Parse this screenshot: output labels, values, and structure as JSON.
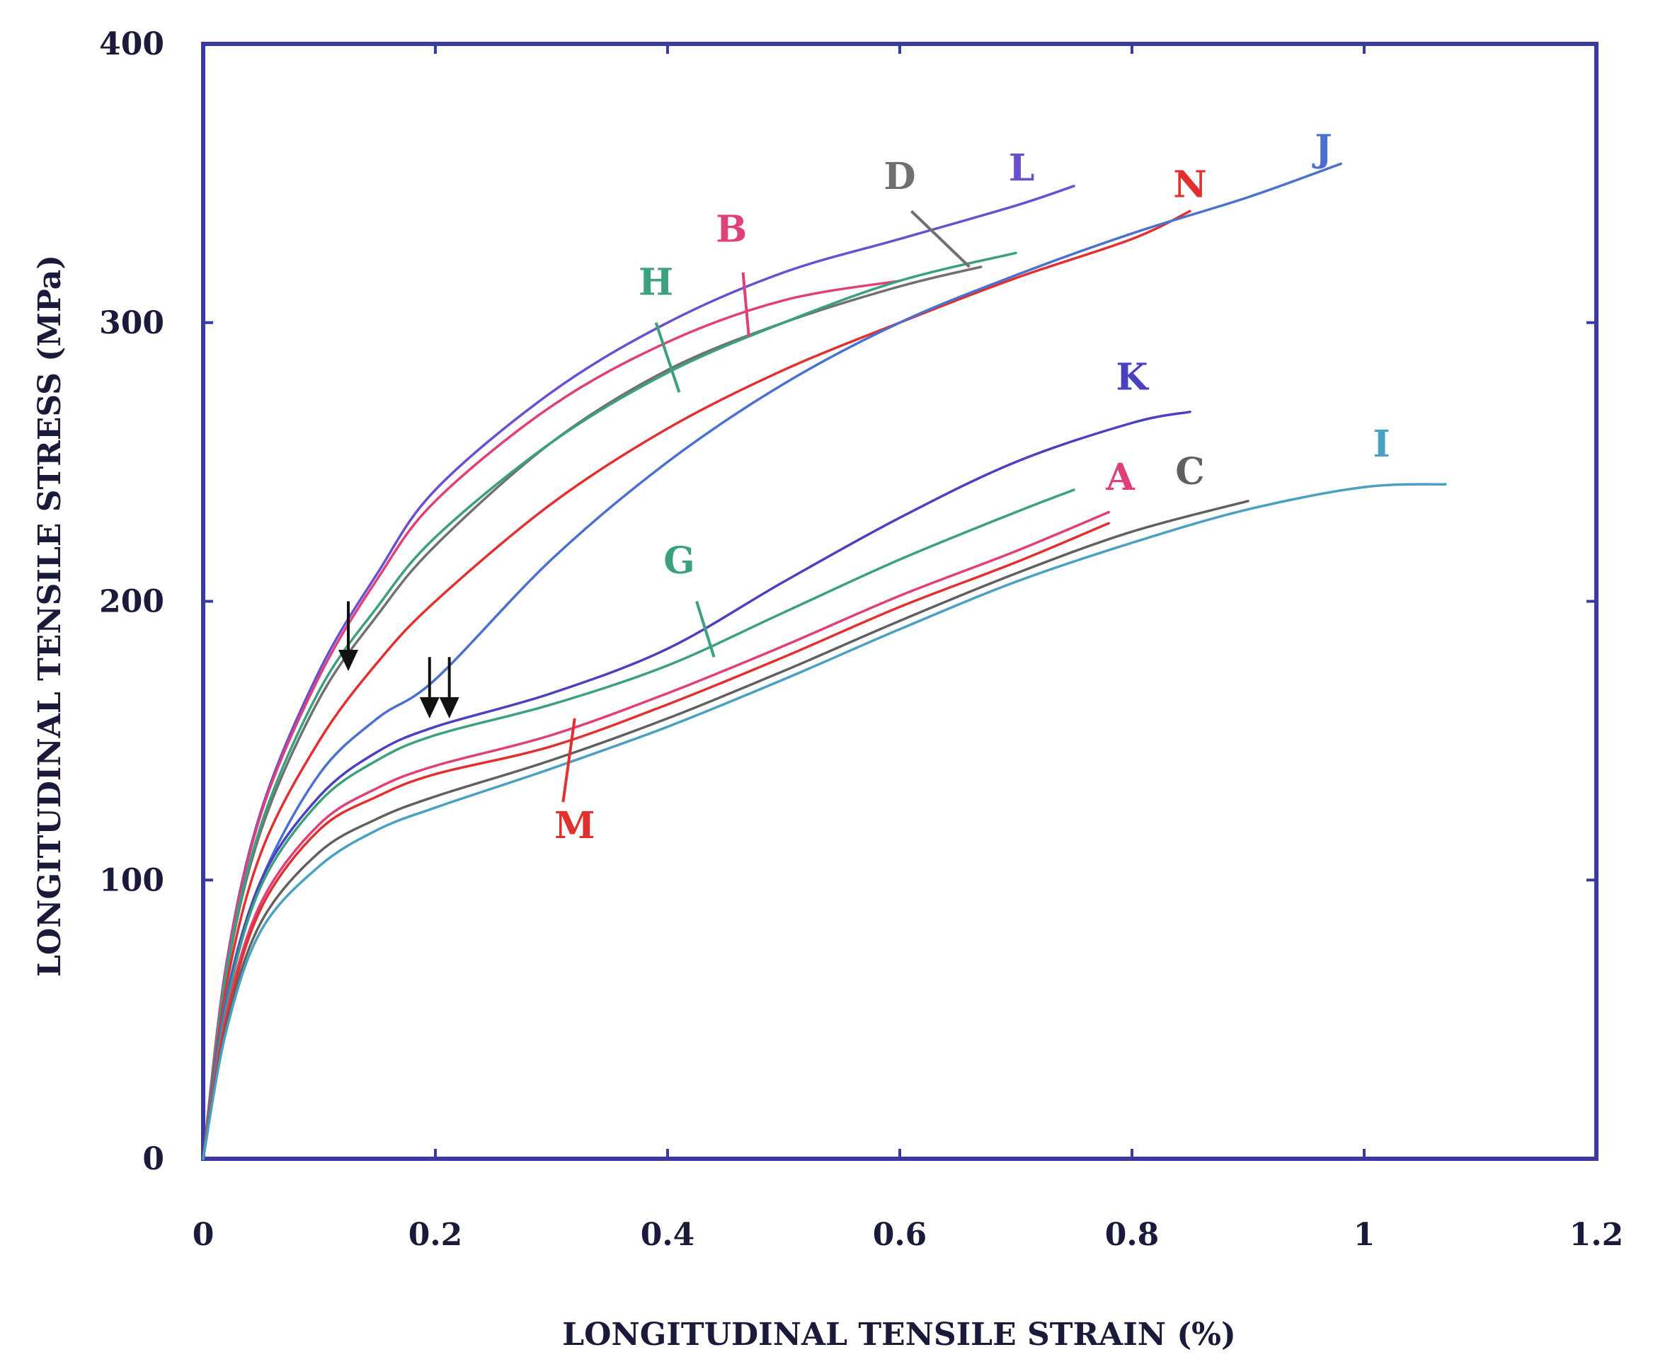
{
  "chart_data": {
    "type": "line",
    "title": "",
    "xlabel": "LONGITUDINAL TENSILE STRAIN (%)",
    "ylabel": "LONGITUDINAL TENSILE STRESS (MPa)",
    "xlim": [
      0,
      1.2
    ],
    "ylim": [
      0,
      400
    ],
    "xticks": [
      0,
      0.2,
      0.4,
      0.6,
      0.8,
      1,
      1.2
    ],
    "xtick_labels": [
      "0",
      "0.2",
      "0.4",
      "0.6",
      "0.8",
      "1",
      "1.2"
    ],
    "yticks": [
      0,
      100,
      200,
      300,
      400
    ],
    "ytick_labels": [
      "0",
      "100",
      "200",
      "300",
      "400"
    ],
    "grid": false,
    "legend": "inline labels",
    "frame_color": "#3a3aa0",
    "series": [
      {
        "name": "L",
        "color": "#6a4fd0",
        "label_at": [
          0.705,
          351
        ],
        "leader": null,
        "x": [
          0,
          0.02,
          0.05,
          0.1,
          0.15,
          0.2,
          0.3,
          0.4,
          0.5,
          0.6,
          0.7,
          0.75
        ],
        "y": [
          0,
          70,
          125,
          175,
          210,
          240,
          275,
          300,
          318,
          330,
          342,
          349
        ]
      },
      {
        "name": "D",
        "color": "#707070",
        "label_at": [
          0.6,
          348
        ],
        "leader": [
          [
            0.61,
            340
          ],
          [
            0.66,
            320
          ]
        ],
        "x": [
          0,
          0.02,
          0.05,
          0.1,
          0.15,
          0.2,
          0.3,
          0.4,
          0.5,
          0.6,
          0.67
        ],
        "y": [
          0,
          66,
          118,
          165,
          195,
          220,
          257,
          283,
          300,
          313,
          320
        ]
      },
      {
        "name": "B",
        "color": "#e0407a",
        "label_at": [
          0.455,
          329
        ],
        "leader": [
          [
            0.465,
            318
          ],
          [
            0.47,
            295
          ]
        ],
        "x": [
          0,
          0.02,
          0.05,
          0.1,
          0.15,
          0.2,
          0.3,
          0.4,
          0.5,
          0.6
        ],
        "y": [
          0,
          69,
          124,
          173,
          208,
          236,
          270,
          293,
          308,
          315
        ]
      },
      {
        "name": "H",
        "color": "#3aa080",
        "label_at": [
          0.39,
          310
        ],
        "leader": [
          [
            0.39,
            300
          ],
          [
            0.41,
            275
          ]
        ],
        "x": [
          0,
          0.02,
          0.05,
          0.1,
          0.15,
          0.2,
          0.3,
          0.4,
          0.5,
          0.6,
          0.7
        ],
        "y": [
          0,
          67,
          120,
          168,
          198,
          223,
          257,
          282,
          300,
          315,
          325
        ]
      },
      {
        "name": "N",
        "color": "#e03030",
        "label_at": [
          0.85,
          345
        ],
        "leader": null,
        "x": [
          0,
          0.02,
          0.05,
          0.1,
          0.15,
          0.2,
          0.3,
          0.4,
          0.5,
          0.6,
          0.7,
          0.8,
          0.85
        ],
        "y": [
          0,
          62,
          110,
          150,
          178,
          200,
          235,
          262,
          283,
          300,
          316,
          330,
          340
        ]
      },
      {
        "name": "J",
        "color": "#4a70d0",
        "label_at": [
          0.965,
          358
        ],
        "leader": null,
        "x": [
          0,
          0.02,
          0.05,
          0.1,
          0.15,
          0.2,
          0.3,
          0.4,
          0.5,
          0.6,
          0.7,
          0.8,
          0.9,
          0.98
        ],
        "y": [
          0,
          58,
          100,
          138,
          158,
          172,
          215,
          250,
          278,
          300,
          317,
          332,
          345,
          357
        ]
      },
      {
        "name": "K",
        "color": "#4a40c0",
        "label_at": [
          0.8,
          276
        ],
        "leader": null,
        "x": [
          0,
          0.02,
          0.05,
          0.1,
          0.15,
          0.2,
          0.3,
          0.4,
          0.5,
          0.6,
          0.7,
          0.8,
          0.85
        ],
        "y": [
          0,
          56,
          100,
          130,
          146,
          155,
          167,
          183,
          207,
          230,
          250,
          264,
          268
        ]
      },
      {
        "name": "G",
        "color": "#3aa080",
        "label_at": [
          0.41,
          210
        ],
        "leader": [
          [
            0.425,
            200
          ],
          [
            0.44,
            180
          ]
        ],
        "x": [
          0,
          0.02,
          0.05,
          0.1,
          0.15,
          0.2,
          0.3,
          0.4,
          0.5,
          0.6,
          0.7,
          0.75
        ],
        "y": [
          0,
          55,
          98,
          128,
          143,
          152,
          163,
          177,
          196,
          215,
          232,
          240
        ]
      },
      {
        "name": "A",
        "color": "#e0407a",
        "label_at": [
          0.79,
          240
        ],
        "leader": null,
        "x": [
          0,
          0.02,
          0.05,
          0.1,
          0.15,
          0.2,
          0.3,
          0.4,
          0.5,
          0.6,
          0.7,
          0.78
        ],
        "y": [
          0,
          52,
          92,
          120,
          133,
          141,
          152,
          167,
          184,
          202,
          218,
          232
        ]
      },
      {
        "name": "M",
        "color": "#e03030",
        "label_at": [
          0.32,
          115
        ],
        "leader": [
          [
            0.31,
            128
          ],
          [
            0.32,
            158
          ]
        ],
        "x": [
          0,
          0.02,
          0.05,
          0.1,
          0.15,
          0.2,
          0.3,
          0.4,
          0.5,
          0.6,
          0.7,
          0.78
        ],
        "y": [
          0,
          50,
          90,
          118,
          130,
          138,
          148,
          163,
          180,
          198,
          214,
          228
        ]
      },
      {
        "name": "C",
        "color": "#606060",
        "label_at": [
          0.85,
          242
        ],
        "leader": null,
        "x": [
          0,
          0.02,
          0.05,
          0.1,
          0.15,
          0.2,
          0.3,
          0.4,
          0.5,
          0.6,
          0.7,
          0.8,
          0.9
        ],
        "y": [
          0,
          48,
          85,
          110,
          122,
          130,
          143,
          158,
          175,
          193,
          210,
          225,
          236
        ]
      },
      {
        "name": "I",
        "color": "#4aa0c0",
        "label_at": [
          1.015,
          252
        ],
        "leader": null,
        "x": [
          0,
          0.02,
          0.05,
          0.1,
          0.15,
          0.2,
          0.3,
          0.4,
          0.5,
          0.6,
          0.7,
          0.8,
          0.9,
          1.0,
          1.07
        ],
        "y": [
          0,
          46,
          82,
          105,
          118,
          126,
          140,
          155,
          172,
          190,
          207,
          221,
          233,
          241,
          242
        ]
      }
    ],
    "annotations": [
      {
        "type": "arrow",
        "x": 0.125,
        "y_from": 200,
        "y_to": 175,
        "color": "#111111"
      },
      {
        "type": "arrow",
        "x": 0.195,
        "y_from": 180,
        "y_to": 158,
        "color": "#111111"
      },
      {
        "type": "arrow",
        "x": 0.212,
        "y_from": 180,
        "y_to": 158,
        "color": "#111111"
      }
    ]
  }
}
